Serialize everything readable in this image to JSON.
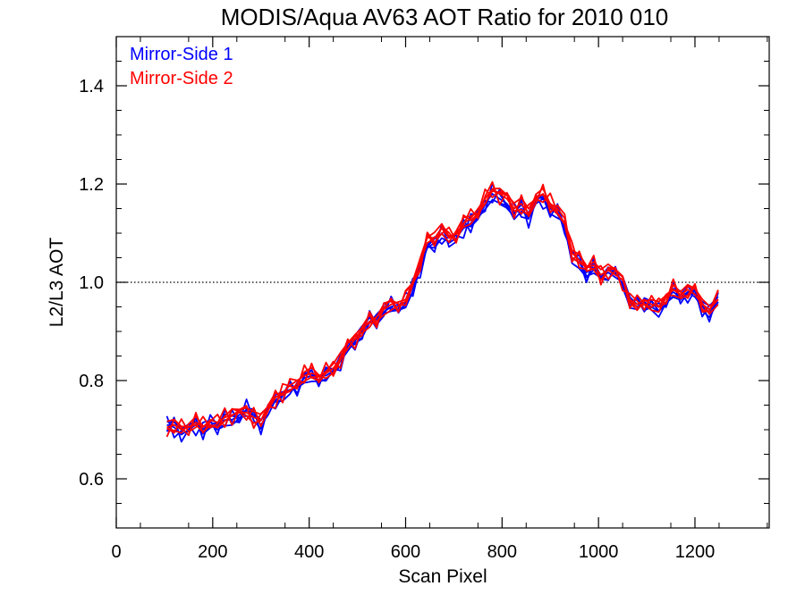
{
  "chart_data": {
    "type": "line",
    "title": "MODIS/Aqua AV63 AOT Ratio for 2010 010",
    "xlabel": "Scan Pixel",
    "ylabel": "L2/L3 AOT",
    "xlim": [
      0,
      1354
    ],
    "ylim": [
      0.5,
      1.5
    ],
    "x_ticks": [
      0,
      200,
      400,
      600,
      800,
      1000,
      1200
    ],
    "x_tick_labels": [
      "0",
      "200",
      "400",
      "600",
      "800",
      "1000",
      "1200"
    ],
    "y_ticks": [
      0.6,
      0.8,
      1.0,
      1.2,
      1.4
    ],
    "y_tick_labels": [
      "0.6",
      "0.8",
      "1.0",
      "1.2",
      "1.4"
    ],
    "reference_line": {
      "y": 1.0,
      "style": "dotted"
    },
    "legend": {
      "placement": "top-left"
    },
    "series": [
      {
        "name": "Mirror-Side 1",
        "color": "#0000ff",
        "x": [
          105,
          120,
          135,
          150,
          165,
          180,
          195,
          210,
          225,
          240,
          255,
          270,
          285,
          300,
          315,
          330,
          345,
          360,
          375,
          390,
          405,
          420,
          435,
          450,
          465,
          480,
          495,
          510,
          525,
          540,
          555,
          570,
          585,
          600,
          615,
          630,
          645,
          660,
          675,
          690,
          705,
          720,
          735,
          750,
          765,
          780,
          795,
          810,
          825,
          840,
          855,
          870,
          885,
          900,
          915,
          930,
          945,
          960,
          975,
          990,
          1005,
          1020,
          1035,
          1050,
          1065,
          1080,
          1095,
          1110,
          1125,
          1140,
          1155,
          1170,
          1185,
          1200,
          1215,
          1230,
          1248
        ],
        "values": [
          0.71,
          0.705,
          0.69,
          0.7,
          0.71,
          0.7,
          0.715,
          0.71,
          0.72,
          0.72,
          0.73,
          0.74,
          0.73,
          0.71,
          0.73,
          0.76,
          0.77,
          0.78,
          0.79,
          0.805,
          0.81,
          0.81,
          0.81,
          0.82,
          0.84,
          0.86,
          0.88,
          0.9,
          0.92,
          0.925,
          0.94,
          0.95,
          0.955,
          0.96,
          0.99,
          1.03,
          1.07,
          1.08,
          1.1,
          1.08,
          1.09,
          1.11,
          1.12,
          1.14,
          1.16,
          1.18,
          1.17,
          1.16,
          1.14,
          1.15,
          1.13,
          1.16,
          1.17,
          1.15,
          1.14,
          1.12,
          1.05,
          1.04,
          1.02,
          1.03,
          1.01,
          1.02,
          1.01,
          1.0,
          0.96,
          0.95,
          0.96,
          0.95,
          0.94,
          0.97,
          0.98,
          0.97,
          0.98,
          0.97,
          0.95,
          0.94,
          0.96
        ]
      },
      {
        "name": "Mirror-Side 2",
        "color": "#ff0000",
        "x": [
          105,
          120,
          135,
          150,
          165,
          180,
          195,
          210,
          225,
          240,
          255,
          270,
          285,
          300,
          315,
          330,
          345,
          360,
          375,
          390,
          405,
          420,
          435,
          450,
          465,
          480,
          495,
          510,
          525,
          540,
          555,
          570,
          585,
          600,
          615,
          630,
          645,
          660,
          675,
          690,
          705,
          720,
          735,
          750,
          765,
          780,
          795,
          810,
          825,
          840,
          855,
          870,
          885,
          900,
          915,
          930,
          945,
          960,
          975,
          990,
          1005,
          1020,
          1035,
          1050,
          1065,
          1080,
          1095,
          1110,
          1125,
          1140,
          1155,
          1170,
          1185,
          1200,
          1215,
          1230,
          1248
        ],
        "values": [
          0.705,
          0.71,
          0.7,
          0.705,
          0.715,
          0.705,
          0.72,
          0.715,
          0.725,
          0.73,
          0.735,
          0.735,
          0.725,
          0.72,
          0.74,
          0.765,
          0.775,
          0.79,
          0.8,
          0.81,
          0.815,
          0.81,
          0.815,
          0.825,
          0.845,
          0.865,
          0.885,
          0.905,
          0.92,
          0.93,
          0.945,
          0.955,
          0.96,
          0.965,
          1.0,
          1.04,
          1.08,
          1.09,
          1.11,
          1.09,
          1.1,
          1.12,
          1.13,
          1.15,
          1.17,
          1.19,
          1.18,
          1.17,
          1.15,
          1.16,
          1.14,
          1.17,
          1.18,
          1.16,
          1.15,
          1.13,
          1.06,
          1.045,
          1.03,
          1.035,
          1.015,
          1.025,
          1.015,
          1.005,
          0.965,
          0.955,
          0.965,
          0.955,
          0.95,
          0.975,
          0.985,
          0.975,
          0.985,
          0.975,
          0.955,
          0.945,
          0.965
        ]
      }
    ]
  }
}
